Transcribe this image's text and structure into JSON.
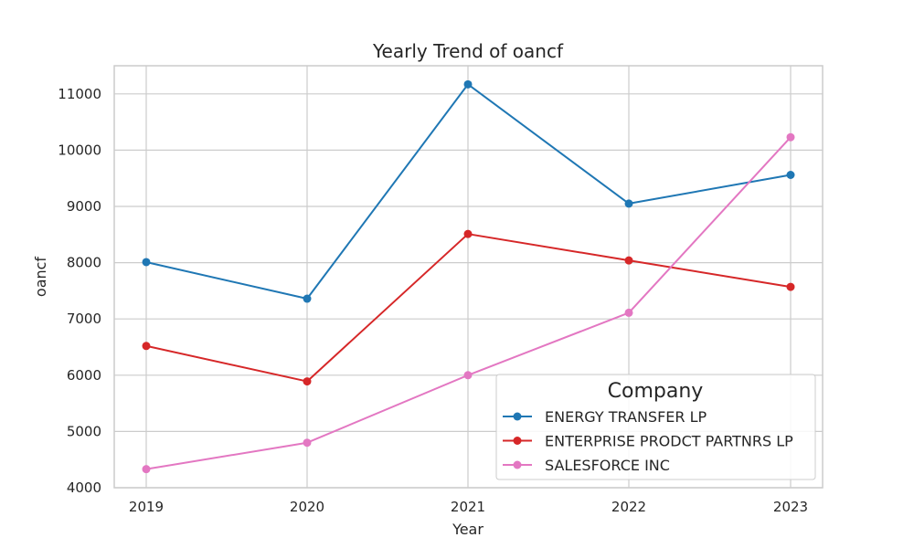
{
  "chart_data": {
    "type": "line",
    "title": "Yearly Trend of oancf",
    "xlabel": "Year",
    "ylabel": "oancf",
    "x": [
      2019,
      2020,
      2021,
      2022,
      2023
    ],
    "x_tick_labels": [
      "2019",
      "2020",
      "2021",
      "2022",
      "2023"
    ],
    "ylim": [
      4000,
      11500
    ],
    "y_ticks": [
      4000,
      5000,
      6000,
      7000,
      8000,
      9000,
      10000,
      11000
    ],
    "y_tick_labels": [
      "4000",
      "5000",
      "6000",
      "7000",
      "8000",
      "9000",
      "10000",
      "11000"
    ],
    "grid": true,
    "legend": {
      "title": "Company",
      "placement": "lower-right"
    },
    "series": [
      {
        "name": "ENERGY TRANSFER LP",
        "color": "#1f77b4",
        "values": [
          8010,
          7360,
          11170,
          9050,
          9560
        ]
      },
      {
        "name": "ENTERPRISE PRODCT PARTNRS LP",
        "color": "#d62728",
        "values": [
          6520,
          5890,
          8510,
          8040,
          7570
        ]
      },
      {
        "name": "SALESFORCE INC",
        "color": "#e377c2",
        "values": [
          4330,
          4800,
          6000,
          7110,
          10230
        ]
      }
    ]
  }
}
